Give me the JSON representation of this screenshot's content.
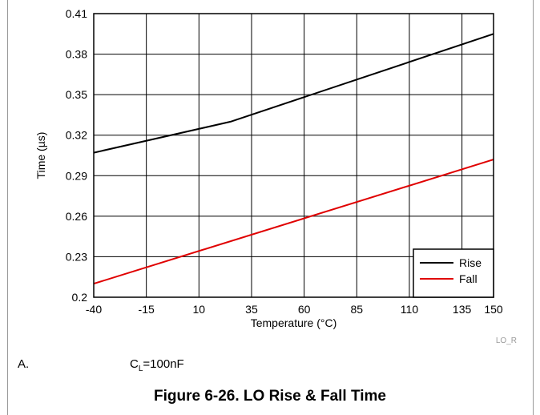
{
  "chart_data": {
    "type": "line",
    "xlabel": "Temperature (°C)",
    "ylabel": "Time (µs)",
    "xlim": [
      -40,
      150
    ],
    "ylim": [
      0.2,
      0.41
    ],
    "xticks": [
      -40,
      -15,
      10,
      35,
      60,
      85,
      110,
      135,
      150
    ],
    "yticks": [
      0.2,
      0.23,
      0.26,
      0.29,
      0.32,
      0.35,
      0.38,
      0.41
    ],
    "grid": true,
    "legend_position": "bottom-right",
    "series": [
      {
        "name": "Rise",
        "color": "#000000",
        "x": [
          -40,
          25,
          150
        ],
        "y": [
          0.307,
          0.33,
          0.395
        ]
      },
      {
        "name": "Fall",
        "color": "#e00000",
        "x": [
          -40,
          150
        ],
        "y": [
          0.21,
          0.302
        ]
      }
    ]
  },
  "figure_ref": "LO_R",
  "note": {
    "letter": "A.",
    "text_main": "C",
    "text_sub": "L",
    "text_rest": "=100nF"
  },
  "caption": "Figure 6-26. LO Rise & Fall Time"
}
